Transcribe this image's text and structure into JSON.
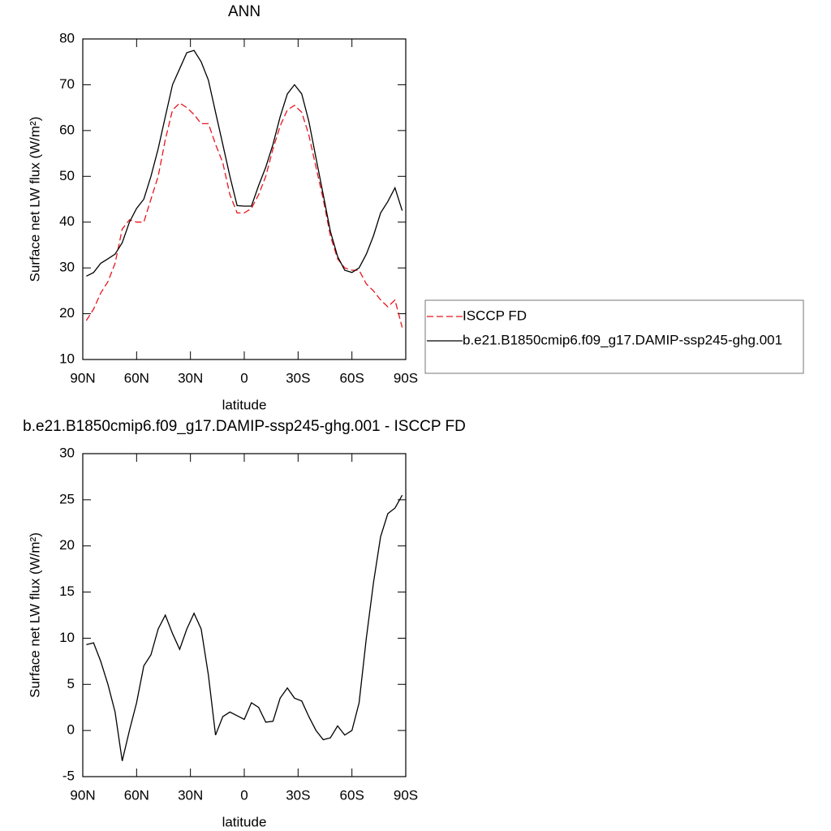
{
  "chart_data": [
    {
      "type": "line",
      "title": "ANN",
      "x_label": "latitude",
      "y_label": "Surface net LW flux (W/m²)",
      "x": [
        88,
        84,
        80,
        76,
        72,
        68,
        64,
        60,
        56,
        52,
        48,
        44,
        40,
        36,
        32,
        28,
        24,
        20,
        16,
        12,
        8,
        4,
        0,
        -4,
        -8,
        -12,
        -16,
        -20,
        -24,
        -28,
        -32,
        -36,
        -40,
        -44,
        -48,
        -52,
        -56,
        -60,
        -64,
        -68,
        -72,
        -76,
        -80,
        -84,
        -88
      ],
      "series": [
        {
          "name": "ISCCP FD",
          "color": "#e8141c",
          "line_style": "dashed",
          "values": [
            18.5,
            21,
            24.5,
            27,
            31,
            38.5,
            40.5,
            40,
            40,
            45,
            50,
            58,
            64.5,
            66,
            65,
            63.5,
            61.5,
            61.5,
            57,
            53,
            46,
            42,
            42,
            43,
            46,
            50,
            56,
            61,
            64.5,
            65.5,
            64,
            59,
            52,
            45,
            37,
            32,
            30,
            29.5,
            29.5,
            26.5,
            25,
            23,
            21.5,
            23,
            17
          ]
        },
        {
          "name": "b.e21.B1850cmip6.f09_g17.DAMIP-ssp245-ghg.001",
          "color": "#000000",
          "line_style": "solid",
          "values": [
            28.2,
            29,
            31,
            32,
            33,
            35.5,
            40,
            43,
            45,
            50,
            56,
            63,
            70,
            73.5,
            77,
            77.5,
            75,
            71,
            64,
            57,
            50,
            43.6,
            43.5,
            43.5,
            48,
            52,
            57,
            63,
            68,
            70,
            68,
            62,
            54,
            46,
            38,
            32.5,
            29.5,
            29,
            30,
            33,
            37,
            42,
            44.5,
            47.5,
            42.5
          ]
        }
      ],
      "xlim": [
        90,
        -90
      ],
      "xticks": [
        {
          "value": 90,
          "label": "90N"
        },
        {
          "value": 60,
          "label": "60N"
        },
        {
          "value": 30,
          "label": "30N"
        },
        0,
        {
          "value": -30,
          "label": "30S"
        },
        {
          "value": -60,
          "label": "60S"
        },
        {
          "value": -90,
          "label": "90S"
        }
      ],
      "ylim": [
        10,
        80
      ],
      "yticks": [
        10,
        20,
        30,
        40,
        50,
        60,
        70,
        80
      ],
      "legend": "right"
    },
    {
      "type": "line",
      "title": "b.e21.B1850cmip6.f09_g17.DAMIP-ssp245-ghg.001 - ISCCP FD",
      "x_label": "latitude",
      "y_label": "Surface net LW flux (W/m²)",
      "x": [
        88,
        84,
        80,
        76,
        72,
        68,
        64,
        60,
        56,
        52,
        48,
        44,
        40,
        36,
        32,
        28,
        24,
        20,
        16,
        12,
        8,
        4,
        0,
        -4,
        -8,
        -12,
        -16,
        -20,
        -24,
        -28,
        -32,
        -36,
        -40,
        -44,
        -48,
        -52,
        -56,
        -60,
        -64,
        -68,
        -72,
        -76,
        -80,
        -84,
        -88
      ],
      "series": [
        {
          "color": "#000000",
          "line_style": "solid",
          "values": [
            9.3,
            9.5,
            7.5,
            5,
            2,
            -3.3,
            0,
            3,
            7,
            8.2,
            11,
            12.5,
            10.5,
            8.8,
            11,
            12.7,
            11,
            6,
            -0.5,
            1.5,
            2,
            1.6,
            1.2,
            3,
            2.5,
            0.9,
            1,
            3.5,
            4.6,
            3.5,
            3.2,
            1.5,
            0,
            -1,
            -0.8,
            0.5,
            -0.5,
            0,
            3,
            10,
            16,
            21,
            23.5,
            24.1,
            25.5
          ]
        }
      ],
      "xlim": [
        90,
        -90
      ],
      "xticks": [
        {
          "value": 90,
          "label": "90N"
        },
        {
          "value": 60,
          "label": "60N"
        },
        {
          "value": 30,
          "label": "30N"
        },
        0,
        {
          "value": -30,
          "label": "30S"
        },
        {
          "value": -60,
          "label": "60S"
        },
        {
          "value": -90,
          "label": "90S"
        }
      ],
      "ylim": [
        -5,
        30
      ],
      "yticks": [
        -5,
        0,
        5,
        10,
        15,
        20,
        25,
        30
      ]
    }
  ]
}
